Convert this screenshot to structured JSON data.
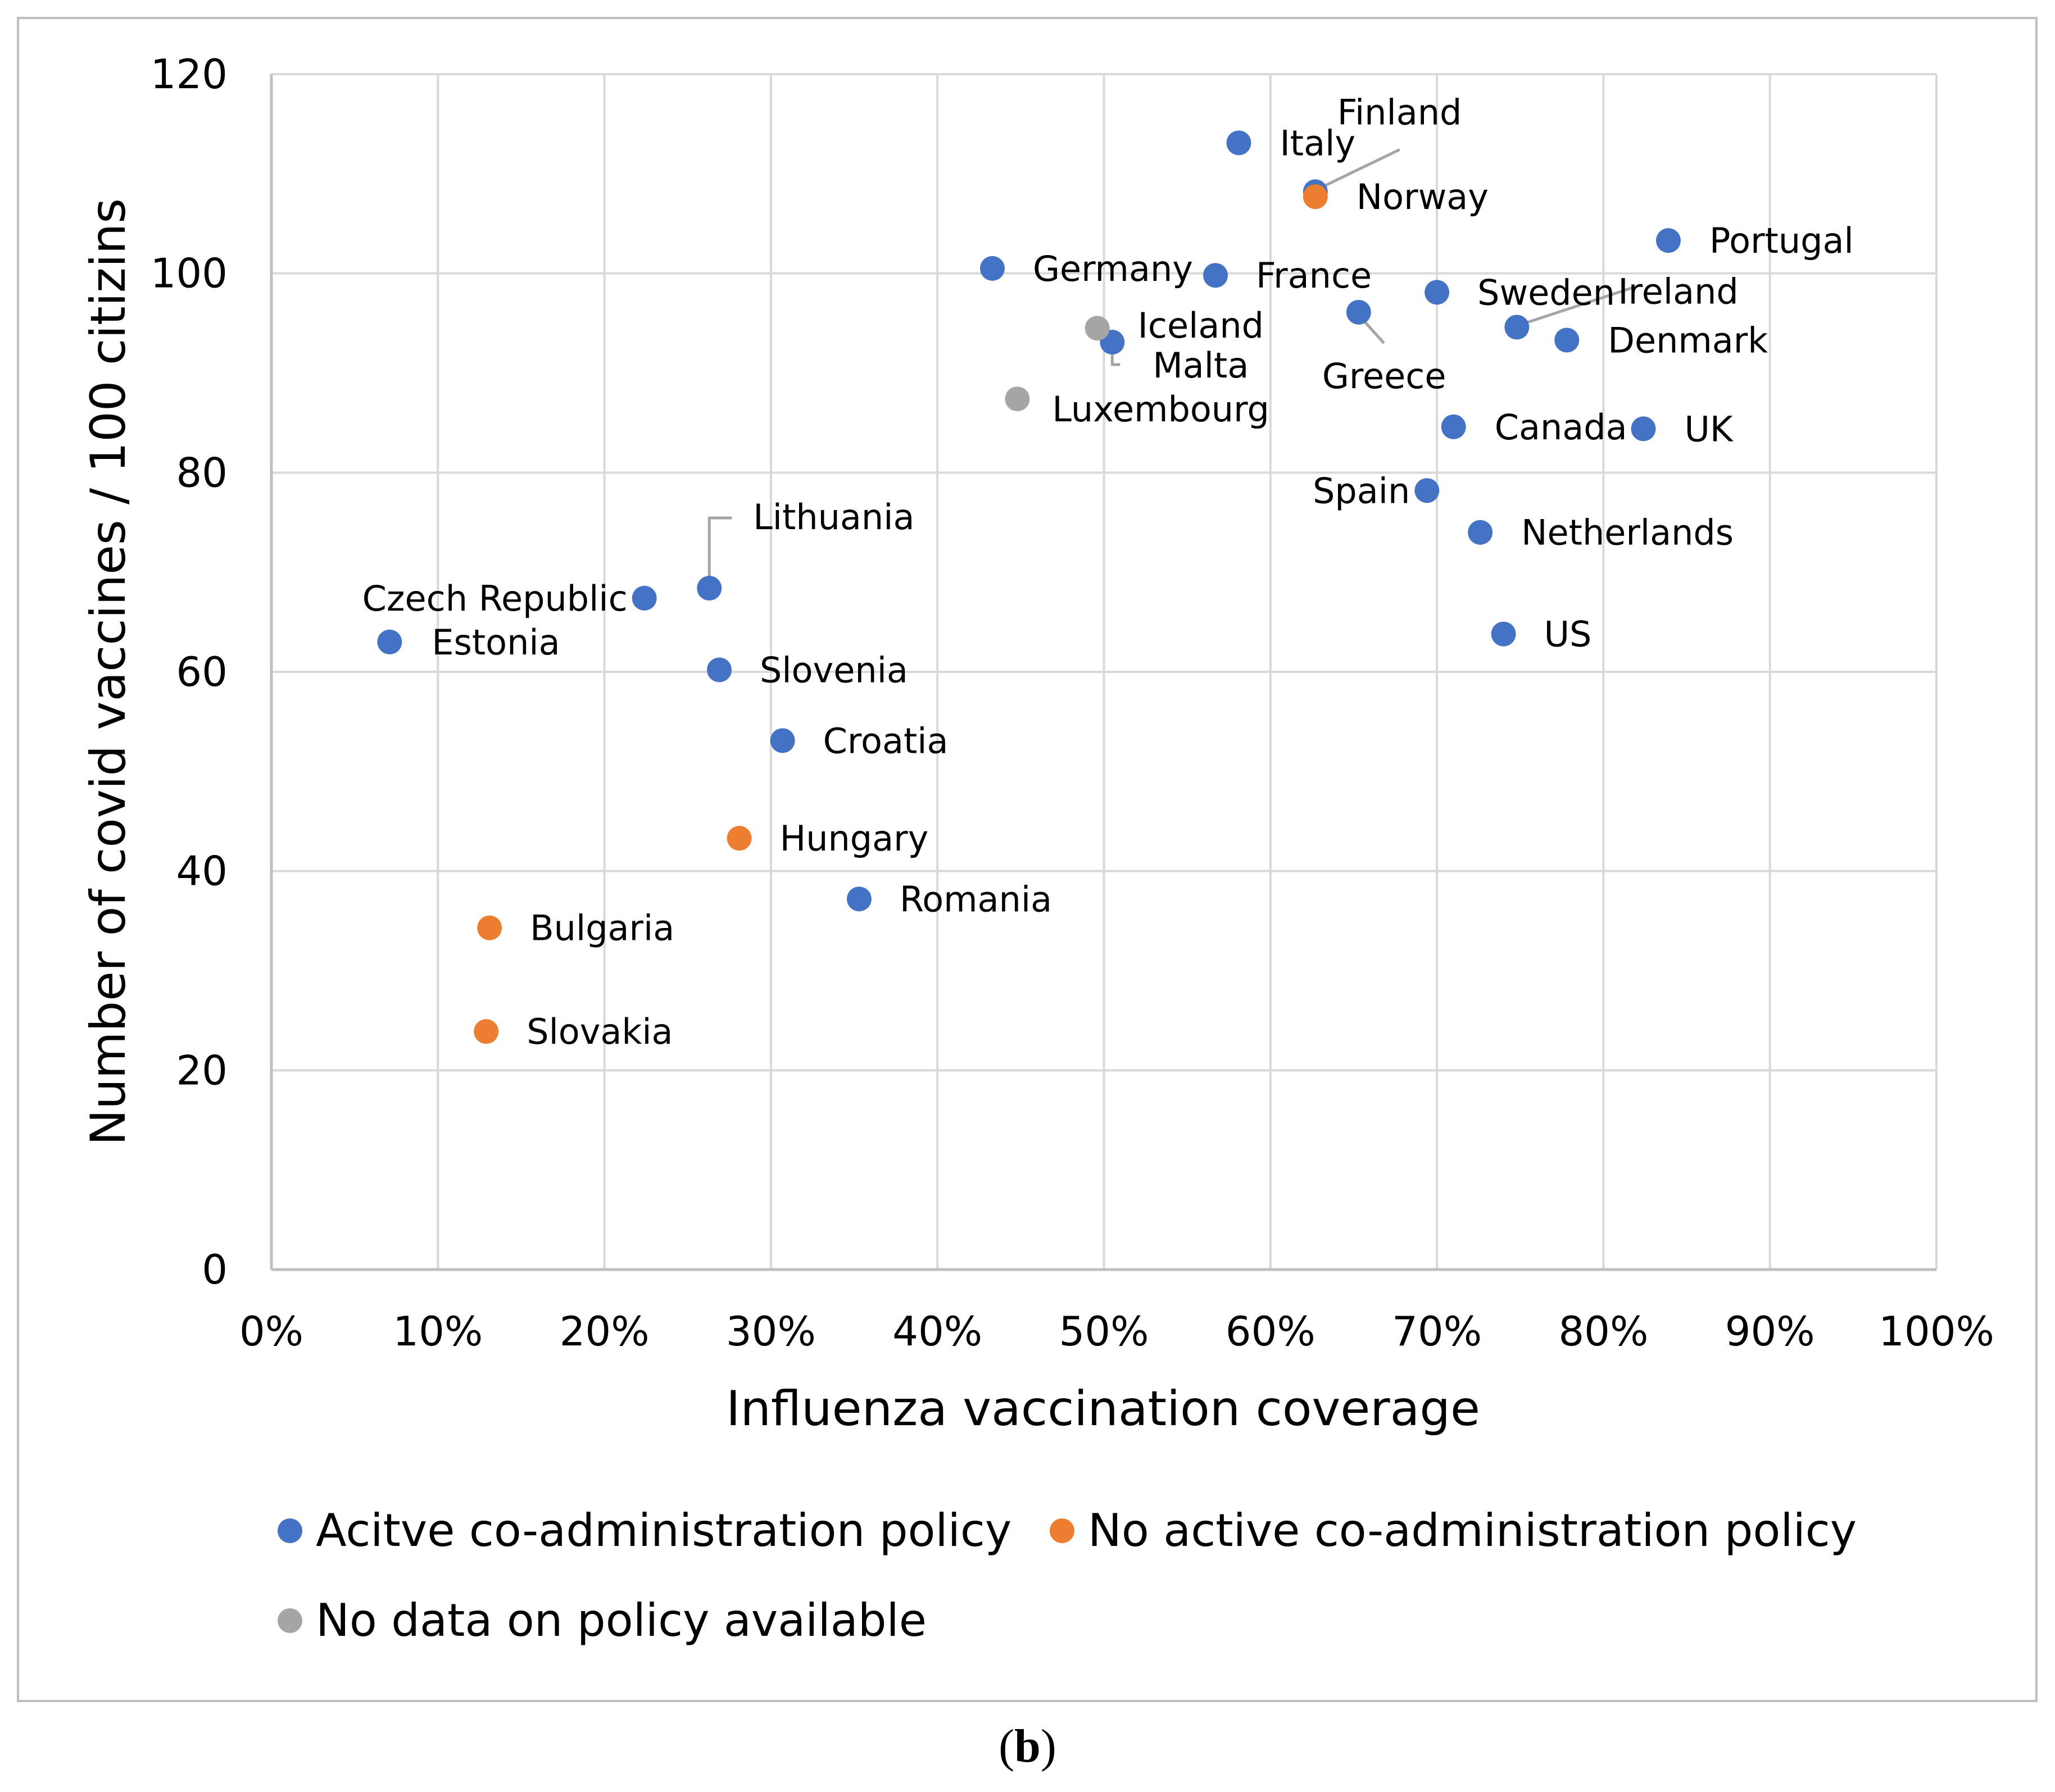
{
  "chart_data": {
    "type": "scatter",
    "xlabel": "Influenza vaccination coverage",
    "ylabel": "Number of covid vaccines / 100 citizins",
    "xlim": [
      0,
      100
    ],
    "ylim": [
      0,
      120
    ],
    "x_ticks": [
      "0%",
      "10%",
      "20%",
      "30%",
      "40%",
      "50%",
      "60%",
      "70%",
      "80%",
      "90%",
      "100%"
    ],
    "y_ticks": [
      "0",
      "20",
      "40",
      "60",
      "80",
      "100",
      "120"
    ],
    "grid": true,
    "legend_position": "bottom",
    "series": [
      {
        "name": "Acitve co-administration policy",
        "color": "#4472C4",
        "points": [
          {
            "label": "Italy",
            "x": 58.1,
            "y": 113.1
          },
          {
            "label": "Finland",
            "x": 62.7,
            "y": 108.2
          },
          {
            "label": "Portugal",
            "x": 83.9,
            "y": 103.3
          },
          {
            "label": "Germany",
            "x": 43.3,
            "y": 100.5
          },
          {
            "label": "France",
            "x": 56.7,
            "y": 99.8
          },
          {
            "label": "Sweden",
            "x": 70.0,
            "y": 98.1
          },
          {
            "label": "Greece",
            "x": 65.3,
            "y": 96.1
          },
          {
            "label": "Ireland",
            "x": 74.8,
            "y": 94.6
          },
          {
            "label": "Denmark",
            "x": 77.8,
            "y": 93.3
          },
          {
            "label": "Malta",
            "x": 50.5,
            "y": 93.1
          },
          {
            "label": "Canada",
            "x": 71.0,
            "y": 84.6
          },
          {
            "label": "UK",
            "x": 82.4,
            "y": 84.4
          },
          {
            "label": "Spain",
            "x": 69.4,
            "y": 78.2
          },
          {
            "label": "Netherlands",
            "x": 72.6,
            "y": 74.0
          },
          {
            "label": "Lithuania",
            "x": 26.3,
            "y": 68.4
          },
          {
            "label": "Czech Republic",
            "x": 22.4,
            "y": 67.4
          },
          {
            "label": "US",
            "x": 74.0,
            "y": 63.8
          },
          {
            "label": "Estonia",
            "x": 7.1,
            "y": 63.0
          },
          {
            "label": "Slovenia",
            "x": 26.9,
            "y": 60.2
          },
          {
            "label": "Croatia",
            "x": 30.7,
            "y": 53.1
          },
          {
            "label": "Romania",
            "x": 35.3,
            "y": 37.2
          }
        ]
      },
      {
        "name": "No active co-administration policy",
        "color": "#ED7D31",
        "points": [
          {
            "label": "Norway",
            "x": 62.7,
            "y": 107.7
          },
          {
            "label": "Hungary",
            "x": 28.1,
            "y": 43.3
          },
          {
            "label": "Bulgaria",
            "x": 13.1,
            "y": 34.3
          },
          {
            "label": "Slovakia",
            "x": 12.9,
            "y": 23.9
          }
        ]
      },
      {
        "name": "No data on policy available",
        "color": "#A5A5A5",
        "points": [
          {
            "label": "Iceland",
            "x": 49.6,
            "y": 94.5
          },
          {
            "label": "Luxembourg",
            "x": 44.8,
            "y": 87.4
          }
        ]
      }
    ]
  },
  "caption": {
    "open": "(",
    "letter": "b",
    "close": ")"
  }
}
